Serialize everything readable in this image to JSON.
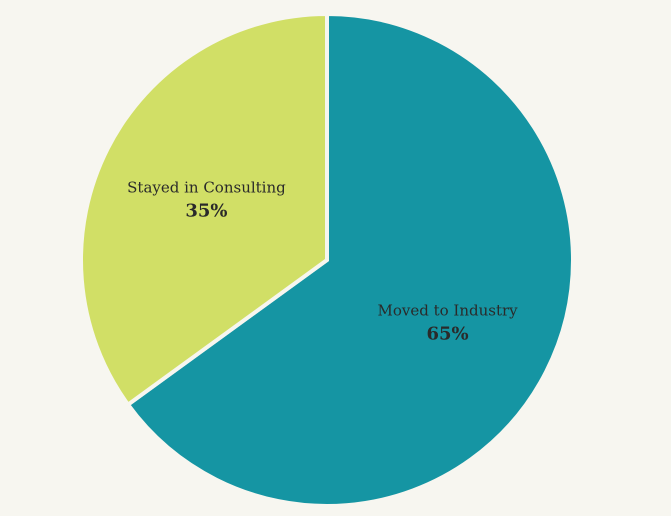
{
  "chart_data": {
    "type": "pie",
    "title": "",
    "start_angle_deg": 0,
    "direction": "clockwise",
    "slices": [
      {
        "label": "Moved to Industry",
        "value": 65,
        "value_label": "65%",
        "color": "#1595a3"
      },
      {
        "label": "Stayed in Consulting",
        "value": 35,
        "value_label": "35%",
        "color": "#d1df66"
      }
    ]
  },
  "colors": {
    "background": "#f7f6f0",
    "separator": "#f7f6f0"
  }
}
